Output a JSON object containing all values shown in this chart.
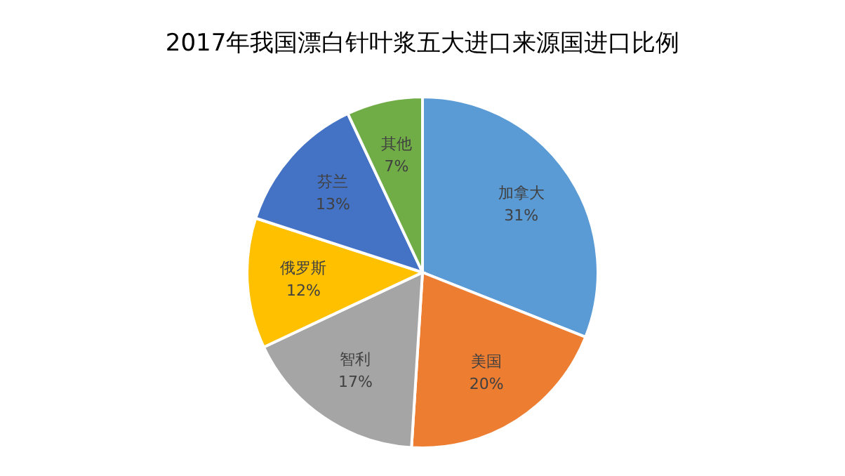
{
  "chart_data": {
    "type": "pie",
    "title": "2017年我国漂白针叶浆五大进口来源国进口比例",
    "categories": [
      "加拿大",
      "美国",
      "智利",
      "俄罗斯",
      "芬兰",
      "其他"
    ],
    "values": [
      31,
      20,
      17,
      12,
      13,
      7
    ],
    "value_labels": [
      "31%",
      "20%",
      "17%",
      "12%",
      "13%",
      "7%"
    ],
    "colors": [
      "#5b9bd5",
      "#ed7d31",
      "#a5a5a5",
      "#ffc000",
      "#4472c4",
      "#70ad47"
    ],
    "legend": false
  }
}
